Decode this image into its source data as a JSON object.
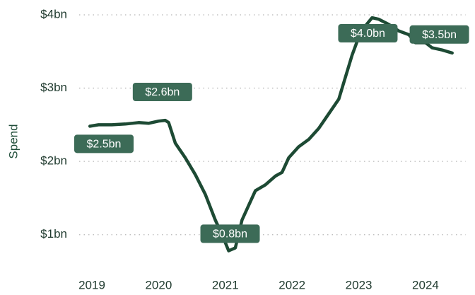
{
  "chart_data": {
    "type": "line",
    "y_label": "Spend",
    "x": [
      2018.97,
      2019.1,
      2019.3,
      2019.5,
      2019.7,
      2019.85,
      2020.0,
      2020.1,
      2020.15,
      2020.25,
      2020.4,
      2020.55,
      2020.7,
      2020.85,
      2020.95,
      2021.05,
      2021.15,
      2021.25,
      2021.35,
      2021.45,
      2021.6,
      2021.75,
      2021.85,
      2021.95,
      2022.1,
      2022.25,
      2022.4,
      2022.55,
      2022.7,
      2022.8,
      2022.9,
      2023.0,
      2023.1,
      2023.2,
      2023.3,
      2023.45,
      2023.6,
      2023.75,
      2023.85,
      2024.0,
      2024.1,
      2024.25,
      2024.4
    ],
    "series": [
      {
        "name": "Spend",
        "color": "#1d4a34",
        "values": [
          2.48,
          2.5,
          2.5,
          2.51,
          2.53,
          2.52,
          2.55,
          2.56,
          2.53,
          2.25,
          2.05,
          1.82,
          1.55,
          1.2,
          1.0,
          0.78,
          0.82,
          1.2,
          1.4,
          1.6,
          1.68,
          1.8,
          1.85,
          2.05,
          2.2,
          2.3,
          2.45,
          2.65,
          2.85,
          3.15,
          3.45,
          3.7,
          3.85,
          3.96,
          3.94,
          3.87,
          3.78,
          3.73,
          3.62,
          3.62,
          3.55,
          3.52,
          3.48
        ]
      }
    ],
    "xlim": [
      2018.75,
      2024.6
    ],
    "xticks": [
      2019,
      2020,
      2021,
      2022,
      2023,
      2024
    ],
    "ylim": [
      0.5,
      4
    ],
    "yticks": [
      {
        "value": 1,
        "label": "$1bn"
      },
      {
        "value": 2,
        "label": "$2bn"
      },
      {
        "value": 3,
        "label": "$3bn"
      },
      {
        "value": 4,
        "label": "$4bn"
      }
    ],
    "grid": true,
    "grid_color": "#b8b8b8",
    "annotation_color": "#3c6b57",
    "annotations": [
      {
        "text": "$2.5bn",
        "x": 2019.0,
        "y": 2.5
      },
      {
        "text": "$2.6bn",
        "x": 2020.1,
        "y": 2.6
      },
      {
        "text": "$0.8bn",
        "x": 2021.05,
        "y": 0.8
      },
      {
        "text": "$4.0bn",
        "x": 2023.2,
        "y": 4.0
      },
      {
        "text": "$3.5bn",
        "x": 2024.25,
        "y": 3.5
      }
    ]
  }
}
